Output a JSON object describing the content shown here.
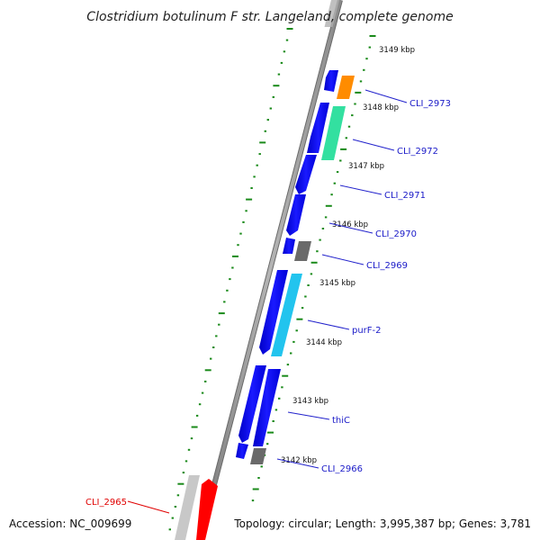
{
  "title": "Clostridium botulinum F str. Langeland, complete genome",
  "footer": {
    "accession": "Accession: NC_009699",
    "topology": "Topology: circular; Length: 3,995,387 bp; Genes: 3,781"
  },
  "ticks": [
    {
      "label": "3149 kbp"
    },
    {
      "label": "3148 kbp"
    },
    {
      "label": "3147 kbp"
    },
    {
      "label": "3146 kbp"
    },
    {
      "label": "3145 kbp"
    },
    {
      "label": "3144 kbp"
    },
    {
      "label": "3143 kbp"
    },
    {
      "label": "3142 kbp"
    }
  ],
  "genes": [
    {
      "label": "CLI_2973",
      "color": "#1a1ac8"
    },
    {
      "label": "CLI_2972",
      "color": "#1a1ac8"
    },
    {
      "label": "CLI_2971",
      "color": "#1a1ac8"
    },
    {
      "label": "CLI_2970",
      "color": "#1a1ac8"
    },
    {
      "label": "CLI_2969",
      "color": "#1a1ac8"
    },
    {
      "label": "purF-2",
      "color": "#1a1ac8"
    },
    {
      "label": "thiC",
      "color": "#1a1ac8"
    },
    {
      "label": "CLI_2966",
      "color": "#1a1ac8"
    },
    {
      "label": "CLI_2965",
      "color": "#e00000"
    }
  ],
  "colors": {
    "backbone": "#8a8a8a",
    "dots": "#1a8a1a",
    "cds_blue": "#0000ee",
    "orange": "#ff8c00",
    "green": "#33e0a0",
    "cyan": "#22c4ee",
    "gray": "#6a6a6a",
    "red": "#ff0000",
    "light_gray": "#c8c8c8"
  }
}
